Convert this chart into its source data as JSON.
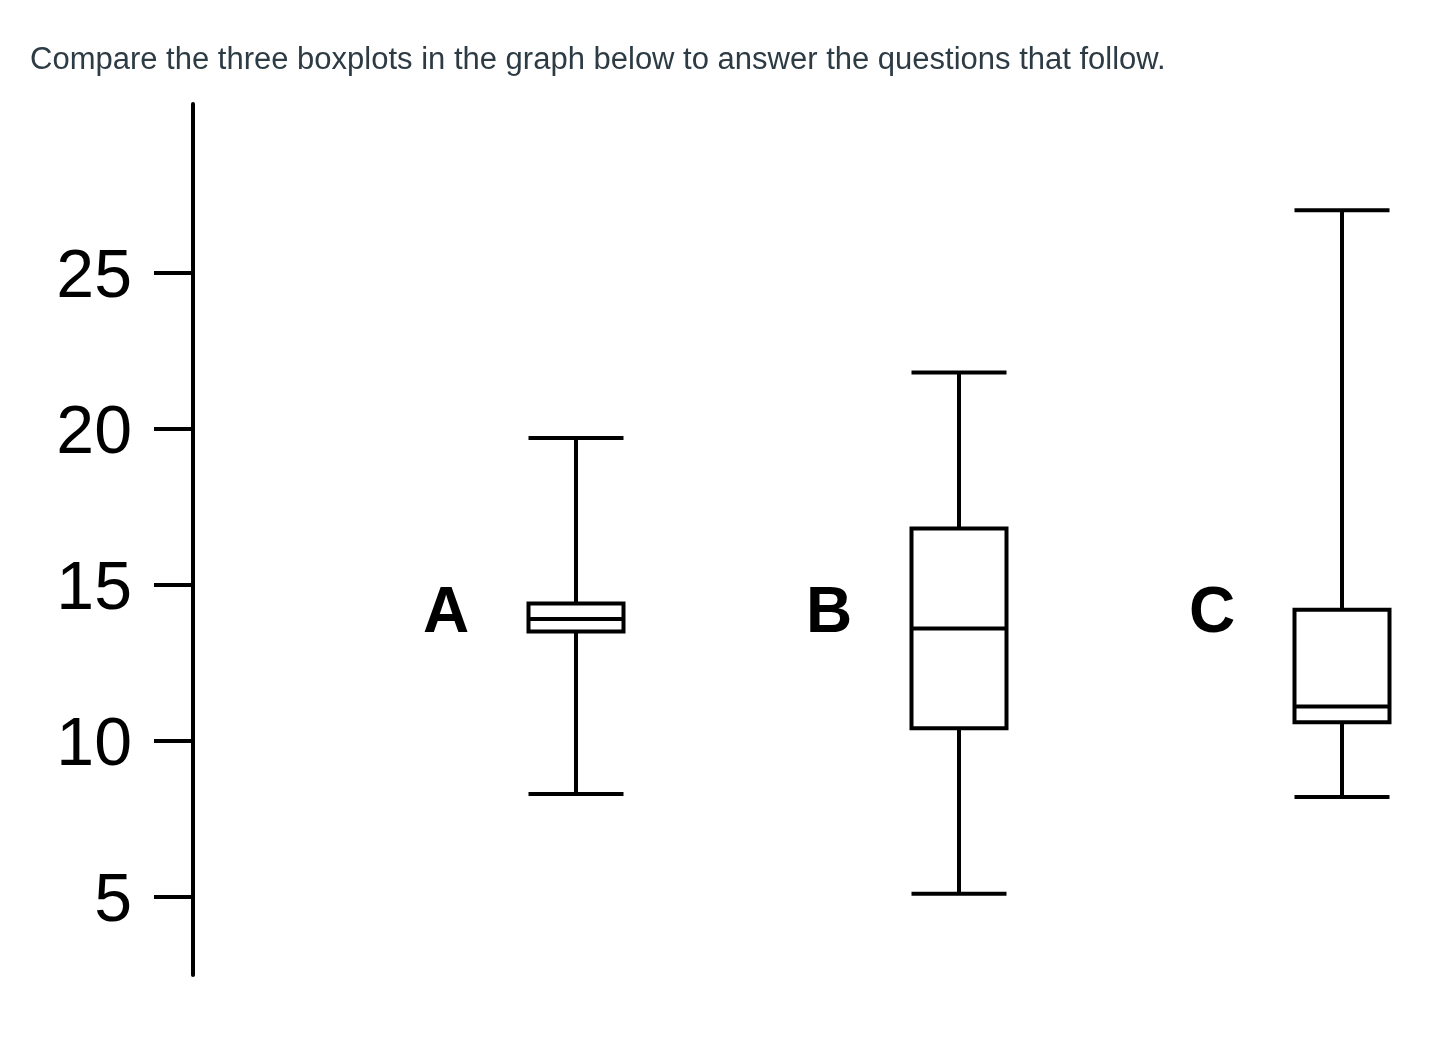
{
  "chart_data": {
    "type": "box",
    "title": "Compare the three boxplots in the graph below to answer the questions that follow.",
    "categories": [
      "A",
      "B",
      "C"
    ],
    "series": [
      {
        "color": "#000000",
        "boxes": [
          {
            "low": 8.3,
            "q1": 13.5,
            "median": 13.9,
            "q3": 14.4,
            "high": 19.7
          },
          {
            "low": 5.1,
            "q1": 10.4,
            "median": 13.6,
            "q3": 16.8,
            "high": 21.8
          },
          {
            "low": 8.2,
            "q1": 10.6,
            "median": 11.1,
            "q3": 14.2,
            "high": 27.0
          }
        ]
      }
    ],
    "ylim": [
      2.5,
      30.4
    ],
    "yticks": [
      5,
      10,
      15,
      20,
      25
    ]
  }
}
